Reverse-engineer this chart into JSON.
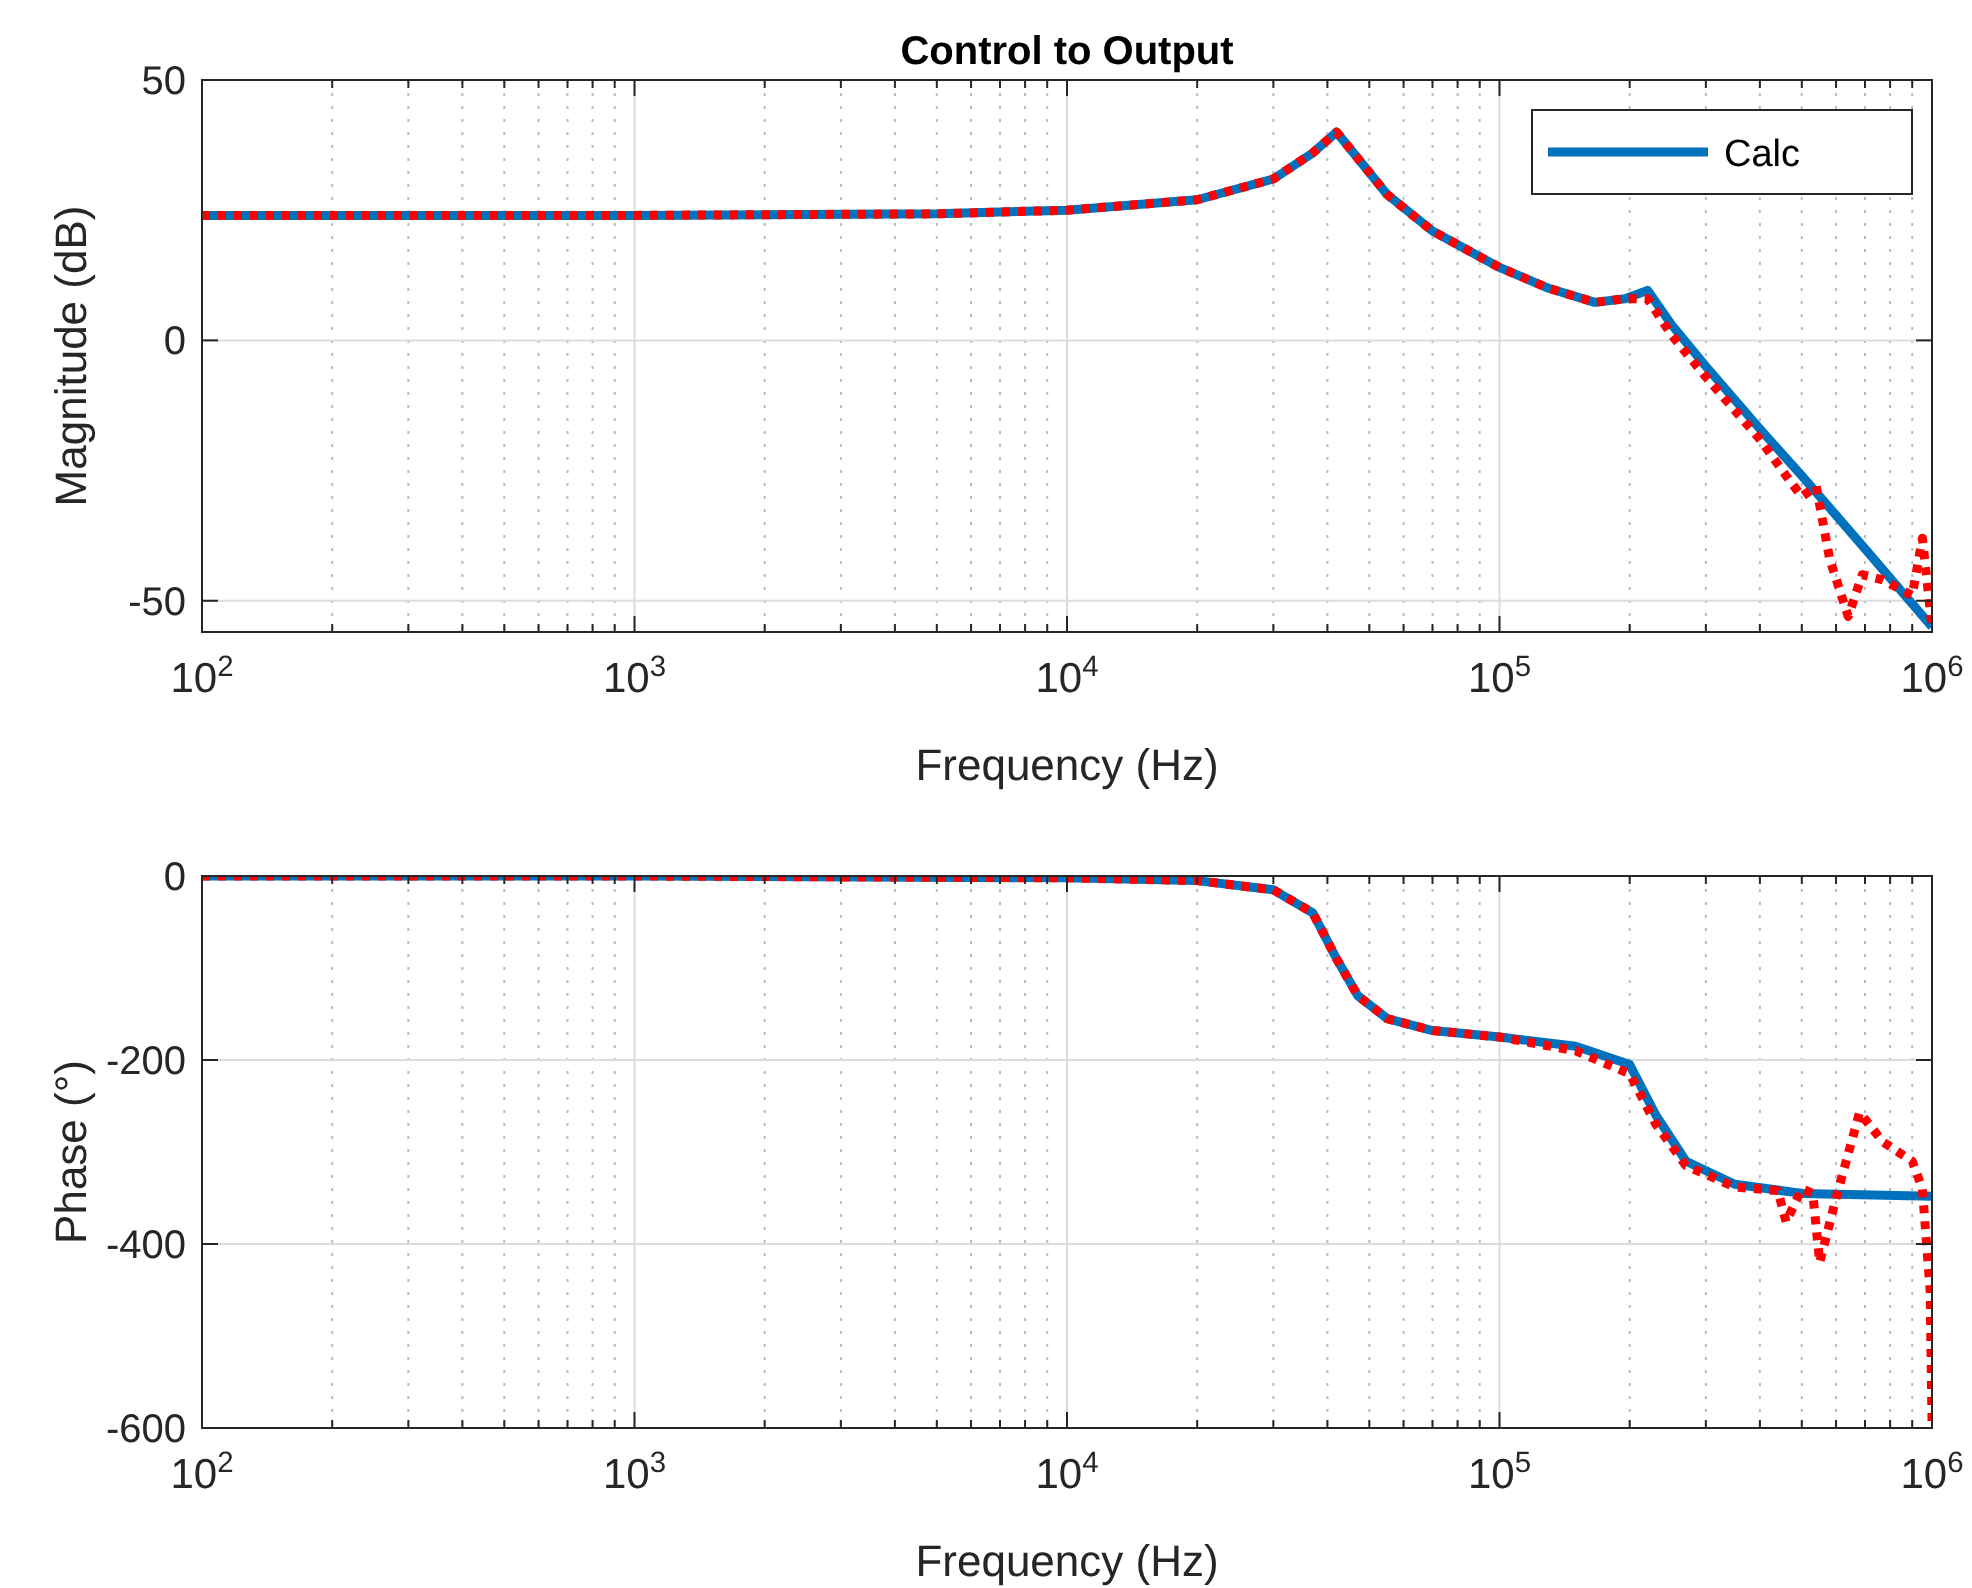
{
  "chart_data": [
    {
      "type": "line",
      "title": "Control to Output",
      "xlabel": "Frequency (Hz)",
      "ylabel": "Magnitude (dB)",
      "log": "x",
      "xlim": [
        100,
        1000000
      ],
      "xticks": [
        {
          "value": 100,
          "label": "10$^{2}$"
        },
        {
          "value": 1000,
          "label": "10$^{3}$"
        },
        {
          "value": 10000,
          "label": "10$^{4}$"
        },
        {
          "value": 100000,
          "label": "10$^{5}$"
        },
        {
          "value": 1000000,
          "label": "10$^{6}$"
        }
      ],
      "ylim": [
        -56,
        50
      ],
      "yticks": [
        -50,
        0,
        50
      ],
      "grid": true,
      "legend": "top right",
      "series": [
        {
          "name": "Calc",
          "color": "#0072bd",
          "line_style": "solid",
          "x": [
            100,
            1000,
            5000,
            10000,
            20000,
            30000,
            37000,
            42000,
            47000,
            55000,
            70000,
            100000,
            130000,
            166000,
            195000,
            220000,
            250000,
            300000,
            400000,
            500000,
            700000,
            1000000
          ],
          "values": [
            24,
            24,
            24.3,
            25,
            27,
            31,
            36,
            40,
            35,
            28,
            21,
            14,
            10,
            7.3,
            8,
            9.6,
            3,
            -5,
            -17,
            -26,
            -40,
            -55
          ]
        },
        {
          "color": "#ff0000",
          "line_style": "dotted",
          "x": [
            100,
            1000,
            5000,
            10000,
            20000,
            30000,
            37000,
            42000,
            47000,
            55000,
            70000,
            100000,
            130000,
            166000,
            195000,
            220000,
            250000,
            300000,
            400000,
            460000,
            500000,
            540000,
            580000,
            640000,
            690000,
            770000,
            900000,
            950000,
            1000000
          ],
          "values": [
            24,
            24,
            24.3,
            25,
            27,
            31,
            36,
            40,
            35,
            28,
            21,
            14,
            10,
            7.3,
            8,
            8,
            1,
            -7,
            -19,
            -26,
            -30,
            -28,
            -42,
            -53,
            -45,
            -46,
            -49,
            -38,
            -55
          ]
        }
      ]
    },
    {
      "type": "line",
      "xlabel": "Frequency (Hz)",
      "ylabel": "Phase (°)",
      "log": "x",
      "xlim": [
        100,
        1000000
      ],
      "xticks": [
        {
          "value": 100,
          "label": "10$^{2}$"
        },
        {
          "value": 1000,
          "label": "10$^{3}$"
        },
        {
          "value": 10000,
          "label": "10$^{4}$"
        },
        {
          "value": 100000,
          "label": "10$^{5}$"
        },
        {
          "value": 1000000,
          "label": "10$^{6}$"
        }
      ],
      "ylim": [
        -600,
        0
      ],
      "yticks": [
        -600,
        -400,
        -200,
        0
      ],
      "grid": true,
      "series": [
        {
          "color": "#0072bd",
          "line_style": "solid",
          "x": [
            100,
            1000,
            10000,
            20000,
            30000,
            37000,
            42000,
            47000,
            55000,
            70000,
            100000,
            150000,
            200000,
            230000,
            270000,
            350000,
            500000,
            1000000
          ],
          "values": [
            0,
            0,
            -2,
            -5,
            -15,
            -40,
            -90,
            -130,
            -155,
            -168,
            -175,
            -185,
            -205,
            -260,
            -310,
            -335,
            -345,
            -348
          ]
        },
        {
          "color": "#ff0000",
          "line_style": "dotted",
          "x": [
            100,
            1000,
            10000,
            20000,
            30000,
            37000,
            42000,
            47000,
            55000,
            70000,
            100000,
            150000,
            200000,
            230000,
            270000,
            350000,
            440000,
            460000,
            500000,
            530000,
            550000,
            600000,
            680000,
            770000,
            900000,
            950000,
            990000,
            1000000
          ],
          "values": [
            0,
            0,
            -2,
            -5,
            -15,
            -40,
            -90,
            -130,
            -155,
            -168,
            -175,
            -190,
            -215,
            -270,
            -315,
            -338,
            -342,
            -376,
            -340,
            -345,
            -420,
            -350,
            -257,
            -289,
            -310,
            -340,
            -450,
            -593
          ]
        }
      ]
    }
  ]
}
